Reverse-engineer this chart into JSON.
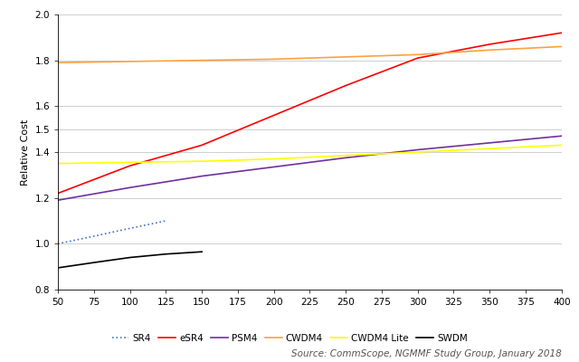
{
  "ylabel": "Relative Cost",
  "source_text": "Source: CommScope, NGMMF Study Group, January 2018",
  "xlim": [
    50,
    400
  ],
  "ylim": [
    0.8,
    2.0
  ],
  "yticks": [
    0.8,
    1.0,
    1.2,
    1.4,
    1.5,
    1.6,
    1.8,
    2.0
  ],
  "xticks": [
    50,
    75,
    100,
    125,
    150,
    175,
    200,
    225,
    250,
    275,
    300,
    325,
    350,
    375,
    400
  ],
  "series": [
    {
      "label": "SR4",
      "color": "#4472C4",
      "linestyle": "dotted",
      "linewidth": 1.2,
      "x": [
        50,
        75,
        100,
        125
      ],
      "y": [
        1.0,
        1.033,
        1.067,
        1.1
      ]
    },
    {
      "label": "eSR4",
      "color": "#FF0000",
      "linestyle": "solid",
      "linewidth": 1.2,
      "x": [
        50,
        100,
        150,
        200,
        250,
        300,
        350,
        400
      ],
      "y": [
        1.22,
        1.34,
        1.43,
        1.56,
        1.69,
        1.81,
        1.87,
        1.92
      ]
    },
    {
      "label": "PSM4",
      "color": "#7030A0",
      "linestyle": "solid",
      "linewidth": 1.2,
      "x": [
        50,
        100,
        150,
        200,
        250,
        300,
        350,
        400
      ],
      "y": [
        1.19,
        1.245,
        1.295,
        1.335,
        1.375,
        1.41,
        1.44,
        1.47
      ]
    },
    {
      "label": "CWDM4",
      "color": "#FFA040",
      "linestyle": "solid",
      "linewidth": 1.2,
      "x": [
        50,
        100,
        150,
        200,
        250,
        300,
        350,
        400
      ],
      "y": [
        1.79,
        1.795,
        1.8,
        1.805,
        1.815,
        1.825,
        1.845,
        1.86
      ]
    },
    {
      "label": "CWDM4 Lite",
      "color": "#FFFF00",
      "linestyle": "solid",
      "linewidth": 1.2,
      "x": [
        50,
        100,
        150,
        200,
        250,
        300,
        350,
        400
      ],
      "y": [
        1.35,
        1.355,
        1.36,
        1.37,
        1.385,
        1.4,
        1.415,
        1.43
      ]
    },
    {
      "label": "SWDM",
      "color": "#000000",
      "linestyle": "solid",
      "linewidth": 1.2,
      "x": [
        50,
        75,
        100,
        125,
        150
      ],
      "y": [
        0.895,
        0.918,
        0.94,
        0.955,
        0.965
      ]
    }
  ],
  "background_color": "#FFFFFF",
  "grid_color": "#C8C8C8",
  "legend_fontsize": 7.5,
  "axis_label_fontsize": 8,
  "tick_fontsize": 7.5,
  "source_fontsize": 7.5
}
